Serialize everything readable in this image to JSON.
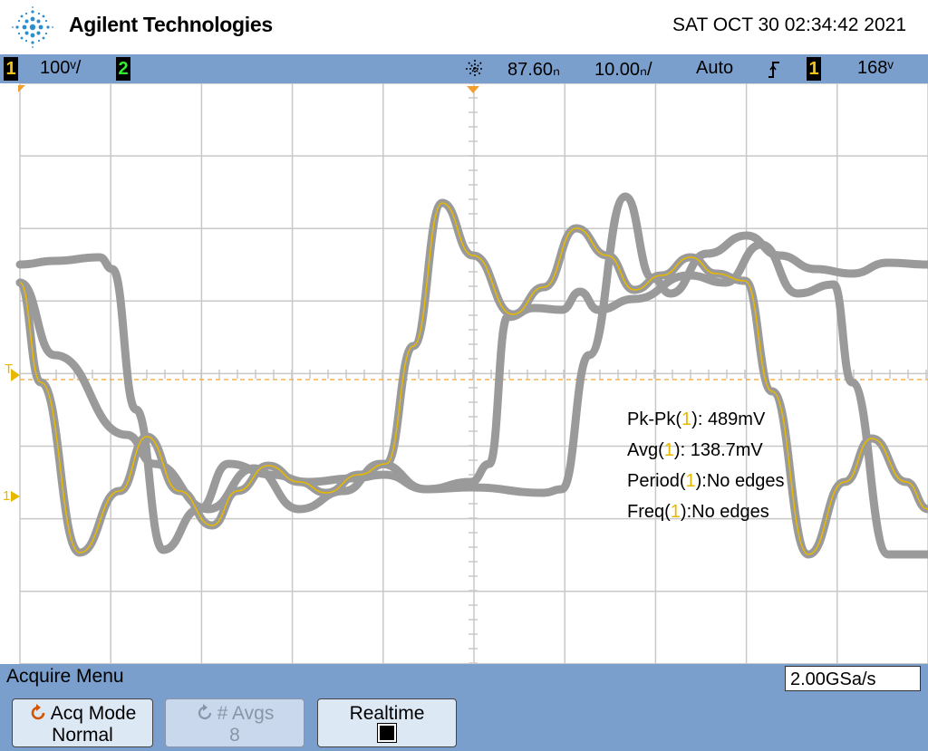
{
  "header": {
    "brand": "Agilent Technologies",
    "datetime": "SAT OCT 30 02:34:42 2021"
  },
  "status": {
    "ch1_label": "1",
    "ch1_scale": "100ᵛ/",
    "ch2_label": "2",
    "delay": "87.60ₙ",
    "timebase": "10.00ₙ/",
    "trigger_mode": "Auto",
    "trigger_slope_icon": "rising-edge-icon",
    "trigger_source": "1",
    "trigger_level": "168ᵛ"
  },
  "markers": {
    "trigger_level": "T",
    "ch1_ground": "1"
  },
  "measurements": [
    {
      "name": "Pk-Pk",
      "source": "1",
      "value": "489mV",
      "sep": ": "
    },
    {
      "name": "Avg",
      "source": "1",
      "value": "138.7mV",
      "sep": ": "
    },
    {
      "name": "Period",
      "source": "1",
      "value": "No edges",
      "sep": ":"
    },
    {
      "name": "Freq",
      "source": "1",
      "value": "No edges",
      "sep": ":"
    }
  ],
  "menu": {
    "title": "Acquire Menu",
    "sample_rate": "2.00GSa/s",
    "softkeys": {
      "acq_mode": {
        "label": "Acq Mode",
        "value": "Normal"
      },
      "avgs": {
        "label": "# Avgs",
        "value": "8"
      },
      "realtime": {
        "label": "Realtime"
      }
    }
  },
  "colors": {
    "trace_persist": "#9a9a9a",
    "trace_live": "#e6b800",
    "grid": "#c8c8c8",
    "bar": "#7b9fcd"
  }
}
